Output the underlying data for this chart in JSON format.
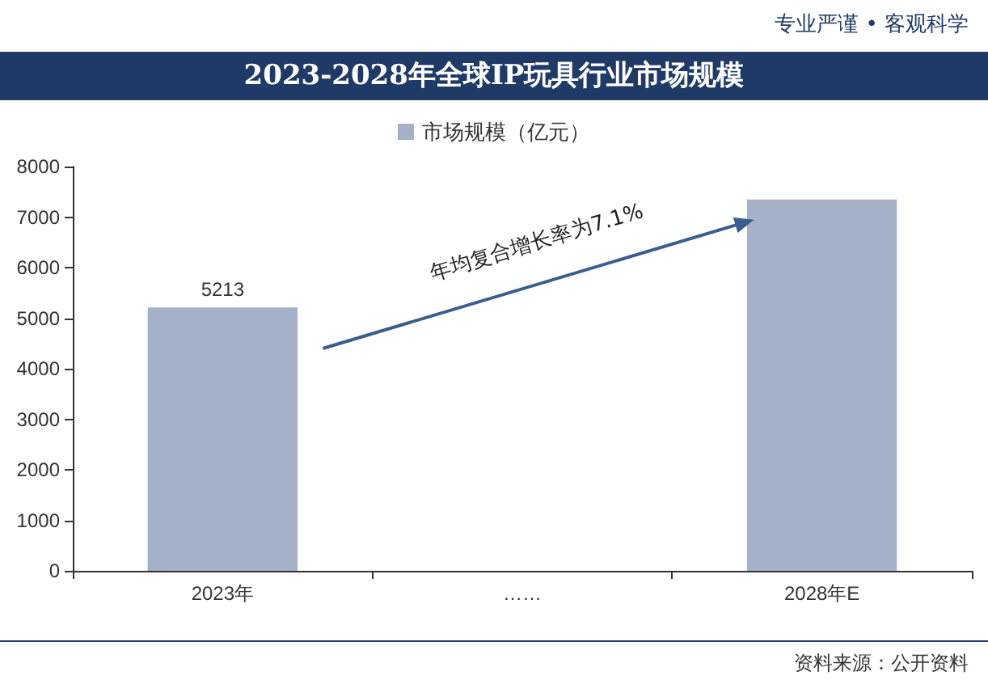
{
  "chart_data": {
    "type": "bar",
    "title": "2023-2028年全球IP玩具行业市场规模",
    "categories": [
      "2023年",
      "……",
      "2028年E"
    ],
    "series": [
      {
        "name": "市场规模（亿元）",
        "color": "#a5b1c9",
        "values": [
          5213,
          null,
          7350
        ],
        "value_labels": [
          "5213",
          null,
          null
        ]
      }
    ],
    "ylim": [
      0,
      8000
    ],
    "yticks": [
      0,
      1000,
      2000,
      3000,
      4000,
      5000,
      6000,
      7000,
      8000
    ],
    "grid": false,
    "legend": "top",
    "annotations": [
      "专业严谨 • 客观科学",
      "年均复合增长率为7.1%",
      "资料来源：公开资料"
    ]
  }
}
